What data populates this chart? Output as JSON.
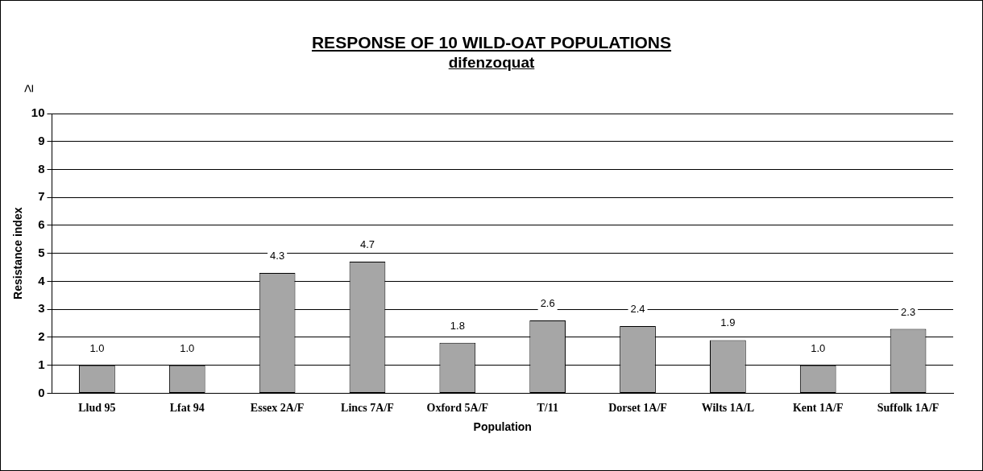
{
  "chart_data": {
    "type": "bar",
    "title": "RESPONSE OF 10 WILD-OAT POPULATIONS",
    "subtitle": "difenzoquat",
    "xlabel": "Population",
    "ylabel": "Resistance index",
    "annotations": [
      "≥"
    ],
    "categories": [
      "Llud 95",
      "Lfat 94",
      "Essex 2A/F",
      "Lincs 7A/F",
      "Oxford 5A/F",
      "T/11",
      "Dorset 1A/F",
      "Wilts 1A/L",
      "Kent 1A/F",
      "Suffolk 1A/F"
    ],
    "values": [
      1.0,
      1.0,
      4.3,
      4.7,
      1.8,
      2.6,
      2.4,
      1.9,
      1.0,
      2.3
    ],
    "value_labels": [
      "1.0",
      "1.0",
      "4.3",
      "4.7",
      "1.8",
      "2.6",
      "2.4",
      "1.9",
      "1.0",
      "2.3"
    ],
    "color": "#a6a6a6",
    "ylim": [
      0,
      10
    ],
    "yticks": [
      0,
      1,
      2,
      3,
      4,
      5,
      6,
      7,
      8,
      9,
      10
    ],
    "grid": "y"
  }
}
